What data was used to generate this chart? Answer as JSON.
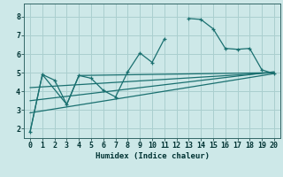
{
  "xlabel": "Humidex (Indice chaleur)",
  "bg_color": "#cde8e8",
  "grid_color": "#aacfcf",
  "line_color": "#1a7070",
  "xlim": [
    -0.5,
    20.5
  ],
  "ylim": [
    1.5,
    8.7
  ],
  "yticks": [
    2,
    3,
    4,
    5,
    6,
    7,
    8
  ],
  "xticks": [
    0,
    1,
    2,
    3,
    4,
    5,
    6,
    7,
    8,
    9,
    10,
    11,
    12,
    13,
    14,
    15,
    16,
    17,
    18,
    19,
    20
  ],
  "series0_x1": [
    0,
    1,
    2,
    3,
    4,
    5,
    6,
    7,
    8,
    9,
    10,
    11
  ],
  "series0_y1": [
    1.85,
    4.9,
    4.6,
    3.3,
    4.85,
    4.7,
    4.05,
    3.7,
    5.05,
    6.05,
    5.55,
    6.8
  ],
  "series0_x2": [
    13,
    14,
    15,
    16,
    17,
    18,
    19,
    20
  ],
  "series0_y2": [
    7.9,
    7.85,
    7.35,
    6.3,
    6.25,
    6.3,
    5.15,
    4.95
  ],
  "series1_x": [
    0,
    1,
    3,
    4,
    20
  ],
  "series1_y": [
    1.85,
    4.9,
    3.3,
    4.85,
    5.0
  ],
  "series2_x": [
    0,
    20
  ],
  "series2_y": [
    2.85,
    4.95
  ],
  "series3_x": [
    0,
    20
  ],
  "series3_y": [
    3.5,
    5.05
  ],
  "series4_x": [
    0,
    20
  ],
  "series4_y": [
    4.2,
    5.0
  ]
}
